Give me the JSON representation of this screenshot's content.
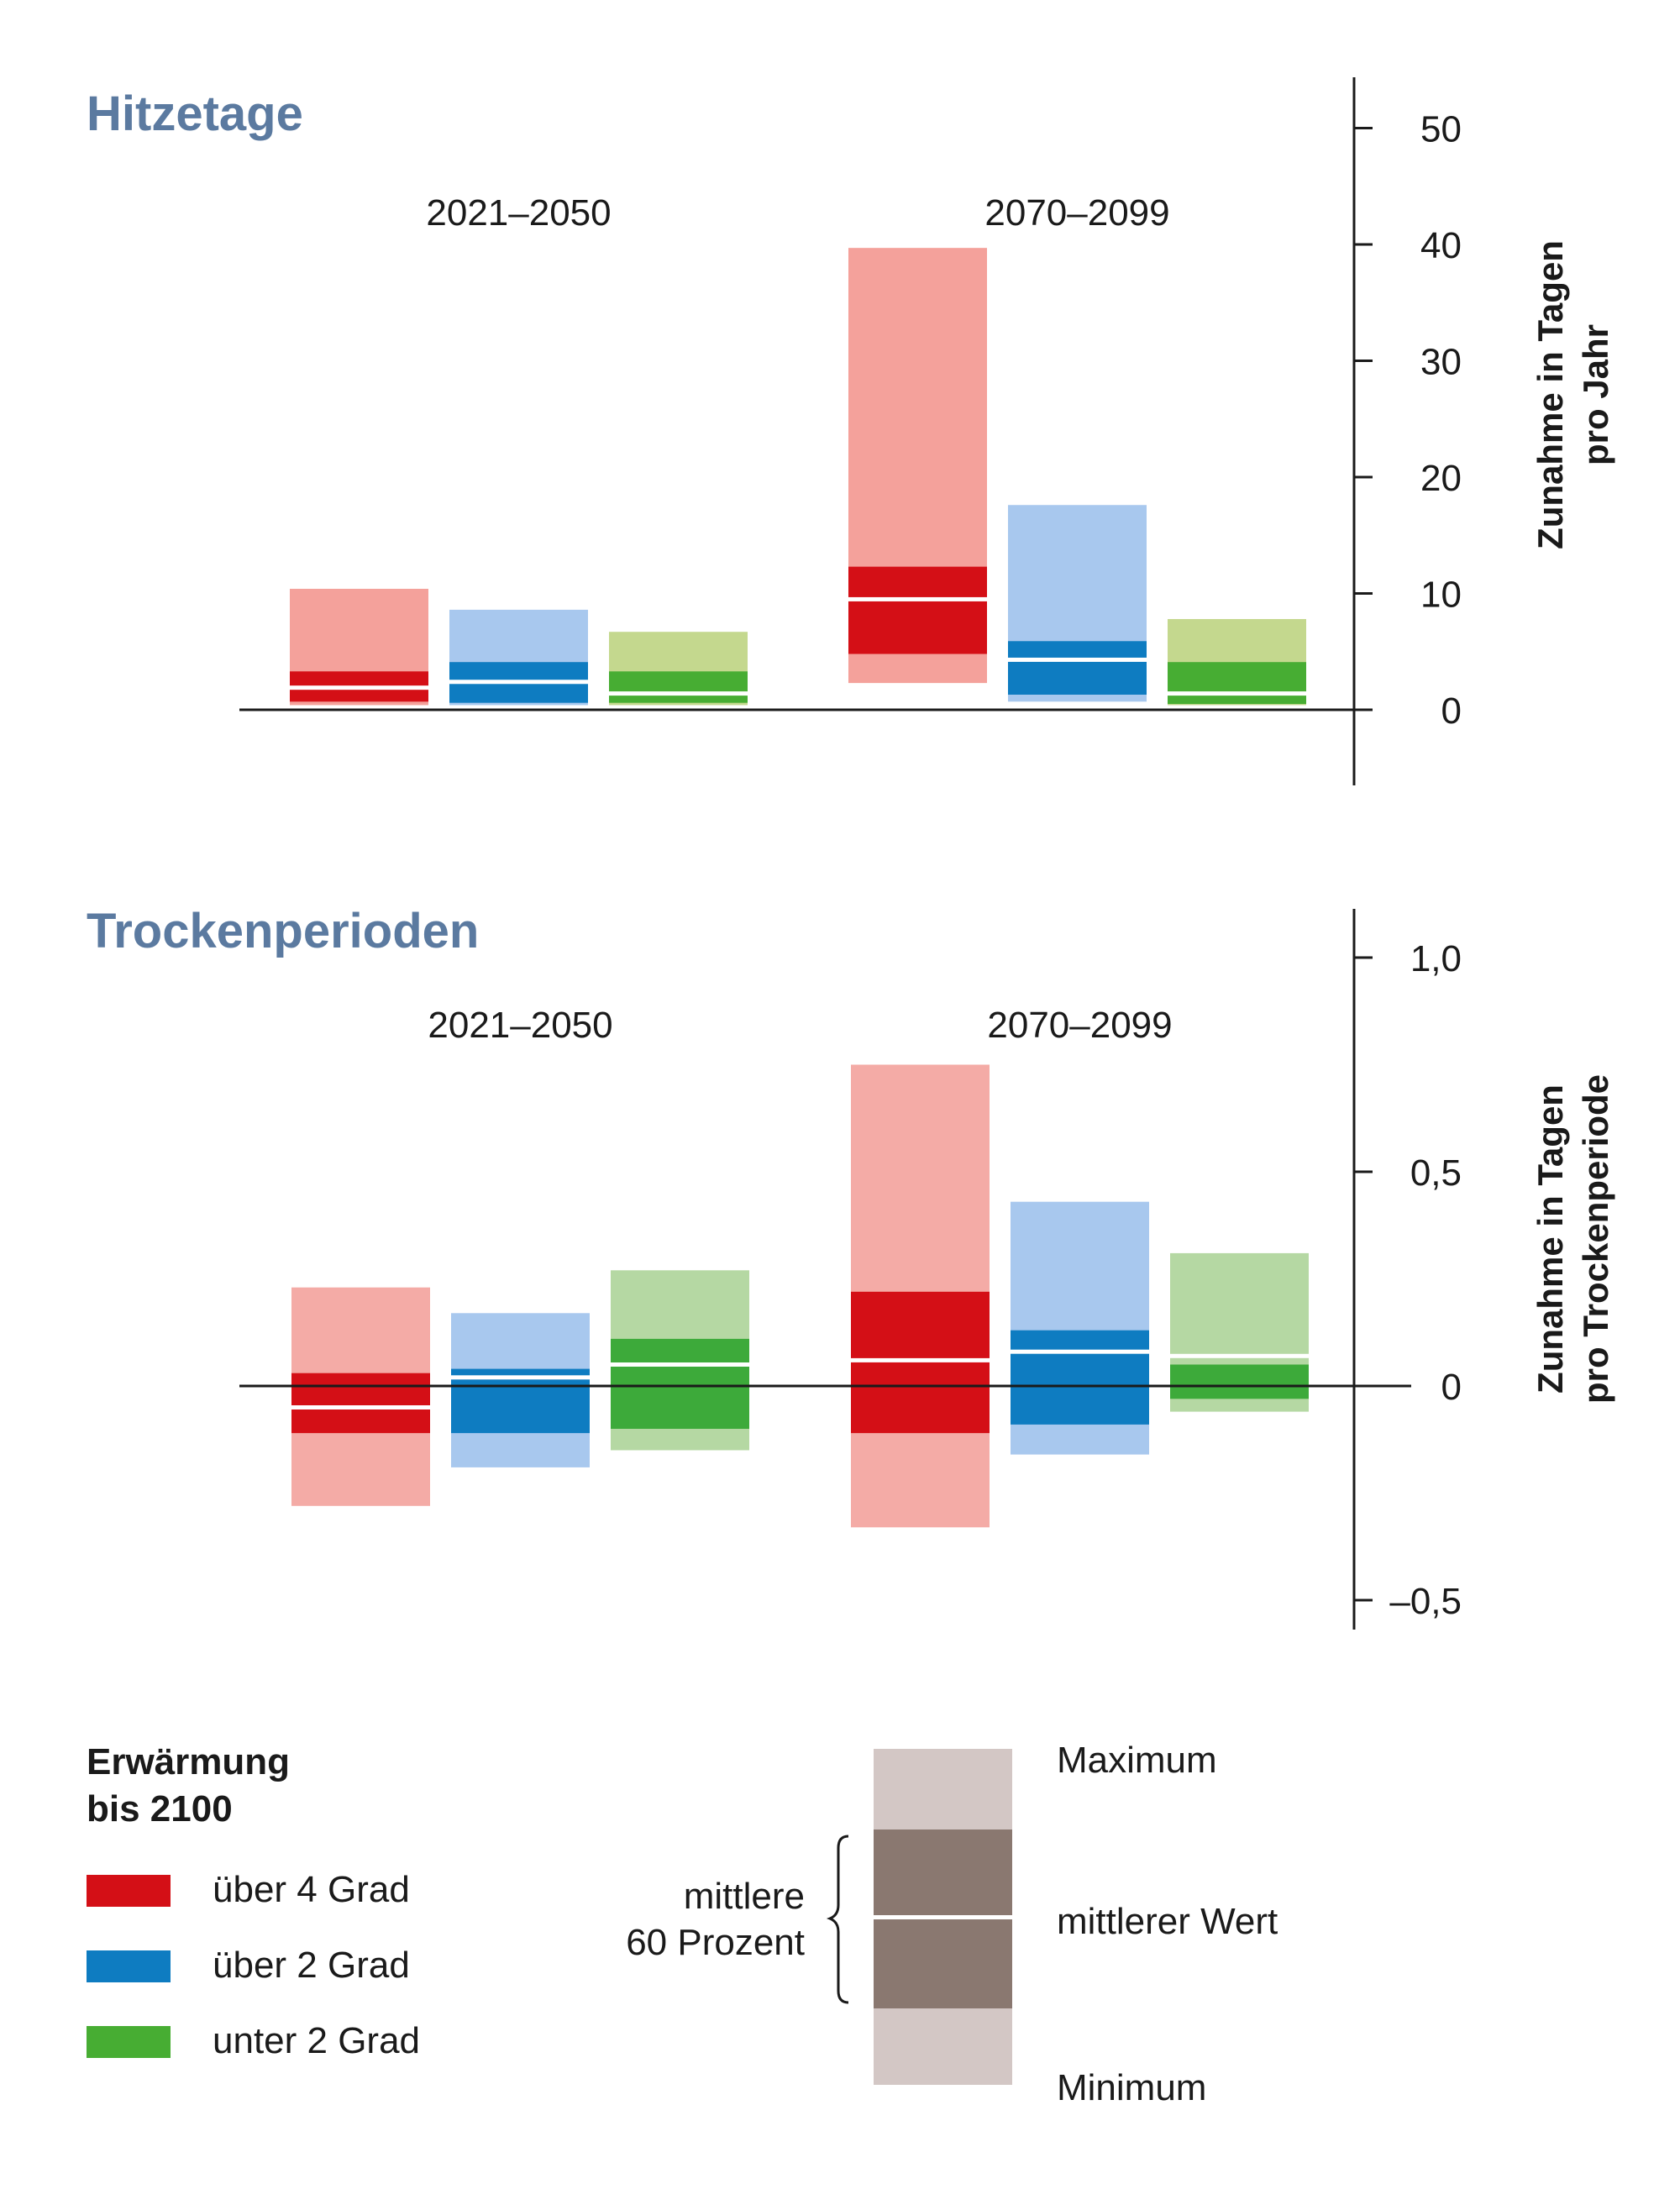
{
  "chart_data": [
    {
      "type": "bar",
      "subtype": "range-bars",
      "title": "Hitzetage",
      "ylabel": [
        "Zunahme in Tagen",
        "pro Jahr"
      ],
      "ylim": [
        -6.5,
        54.5
      ],
      "yticks": [
        0,
        10,
        20,
        30,
        40,
        50
      ],
      "ytick_labels": [
        "0",
        "10",
        "20",
        "30",
        "40",
        "50"
      ],
      "groups": [
        {
          "label": "2021–2050",
          "series": [
            {
              "name": "über 4 Grad",
              "color_light": "#f4a19b",
              "color_dark": "#d40f16",
              "min": 0.4,
              "q_low": 0.7,
              "median": 1.9,
              "q_high": 3.3,
              "max": 10.4
            },
            {
              "name": "über 2 Grad",
              "color_light": "#a8c8ee",
              "color_dark": "#0e7cc1",
              "min": 0.4,
              "q_low": 0.6,
              "median": 2.4,
              "q_high": 4.1,
              "max": 8.6
            },
            {
              "name": "unter 2 Grad",
              "color_light": "#c4d88e",
              "color_dark": "#47ad33",
              "min": 0.4,
              "q_low": 0.6,
              "median": 1.4,
              "q_high": 3.3,
              "max": 6.7
            }
          ]
        },
        {
          "label": "2070–2099",
          "series": [
            {
              "name": "über 4 Grad",
              "color_light": "#f4a19b",
              "color_dark": "#d40f16",
              "min": 2.3,
              "q_low": 4.8,
              "median": 9.5,
              "q_high": 12.3,
              "max": 39.7
            },
            {
              "name": "über 2 Grad",
              "color_light": "#a8c8ee",
              "color_dark": "#0e7cc1",
              "min": 0.7,
              "q_low": 1.3,
              "median": 4.3,
              "q_high": 5.9,
              "max": 17.6
            },
            {
              "name": "unter 2 Grad",
              "color_light": "#c4d88e",
              "color_dark": "#47ad33",
              "min": 0.4,
              "q_low": 0.5,
              "median": 1.4,
              "q_high": 4.1,
              "max": 7.8
            }
          ]
        }
      ]
    },
    {
      "type": "bar",
      "subtype": "range-bars",
      "title": "Trockenperioden",
      "ylabel": [
        "Zunahme in Tagen",
        "pro Trockenperiode"
      ],
      "ylim": [
        -0.58,
        1.12
      ],
      "yticks": [
        -0.5,
        0,
        0.5,
        1.0
      ],
      "ytick_labels": [
        "–0,5",
        "0",
        "0,5",
        "1,0"
      ],
      "groups": [
        {
          "label": "2021–2050",
          "series": [
            {
              "name": "über 4 Grad",
              "color_light": "#f4aba6",
              "color_dark": "#d40f16",
              "min": -0.28,
              "q_low": -0.11,
              "median": -0.05,
              "q_high": 0.03,
              "max": 0.23
            },
            {
              "name": "über 2 Grad",
              "color_light": "#a8c8ee",
              "color_dark": "#0e7cc1",
              "min": -0.19,
              "q_low": -0.11,
              "median": 0.02,
              "q_high": 0.04,
              "max": 0.17
            },
            {
              "name": "unter 2 Grad",
              "color_light": "#b5d8a3",
              "color_dark": "#3daa3a",
              "min": -0.15,
              "q_low": -0.1,
              "median": 0.05,
              "q_high": 0.11,
              "max": 0.27
            }
          ]
        },
        {
          "label": "2070–2099",
          "series": [
            {
              "name": "über 4 Grad",
              "color_light": "#f4aba6",
              "color_dark": "#d40f16",
              "min": -0.33,
              "q_low": -0.11,
              "median": 0.06,
              "q_high": 0.22,
              "max": 0.75
            },
            {
              "name": "über 2 Grad",
              "color_light": "#a8c8ee",
              "color_dark": "#0e7cc1",
              "min": -0.16,
              "q_low": -0.09,
              "median": 0.08,
              "q_high": 0.13,
              "max": 0.43
            },
            {
              "name": "unter 2 Grad",
              "color_light": "#b5d8a3",
              "color_dark": "#3daa3a",
              "min": -0.06,
              "q_low": -0.03,
              "median": 0.07,
              "q_high": 0.05,
              "max": 0.31
            }
          ]
        }
      ]
    }
  ],
  "legend": {
    "title_line1": "Erwärmung",
    "title_line2": "bis 2100",
    "items": [
      {
        "label": "über 4 Grad",
        "color": "#d40f16"
      },
      {
        "label": "über 2 Grad",
        "color": "#0e7cc1"
      },
      {
        "label": "unter 2 Grad",
        "color": "#47ad33"
      }
    ],
    "key": {
      "maximum": "Maximum",
      "median": "mittlerer Wert",
      "minimum": "Minimum",
      "range_line1": "mittlere",
      "range_line2": "60 Prozent",
      "color_light": "#d3c7c5",
      "color_dark": "#8a7870"
    }
  }
}
